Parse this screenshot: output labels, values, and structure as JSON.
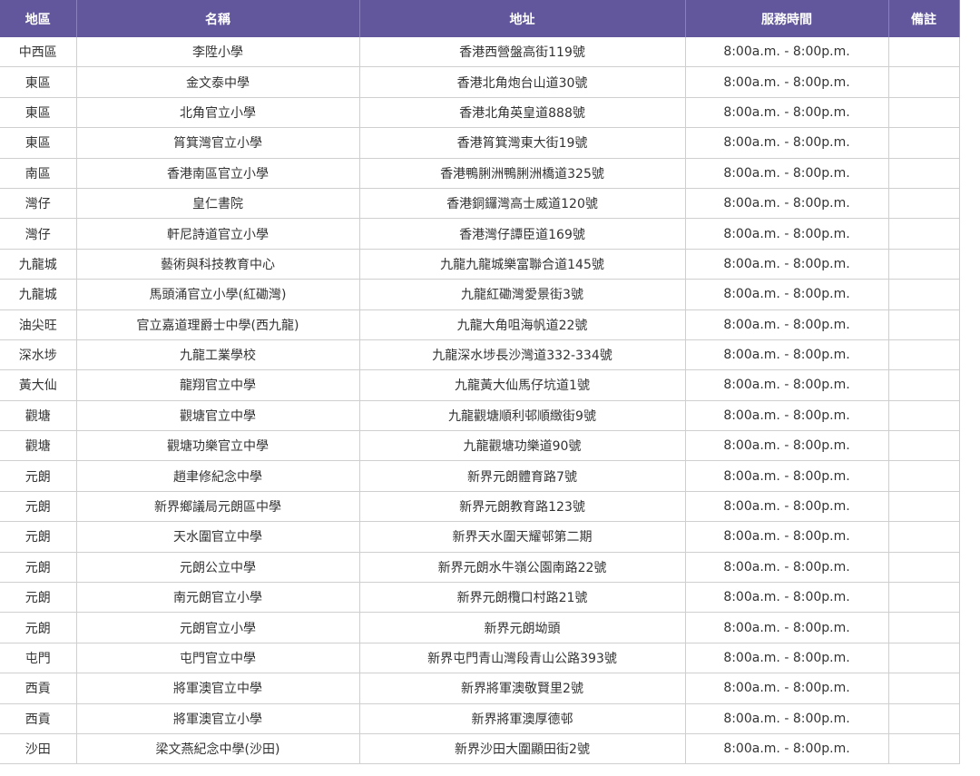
{
  "header": [
    "地區",
    "名稱",
    "地址",
    "服務時間",
    "備註"
  ],
  "colors": {
    "header_bg": "#62569c",
    "header_text": "#ffffff",
    "text": "#333333"
  },
  "rows": [
    [
      "中西區",
      "李陞小學",
      "香港西營盤高街119號",
      "8:00a.m. - 8:00p.m.",
      ""
    ],
    [
      "東區",
      "金文泰中學",
      "香港北角炮台山道30號",
      "8:00a.m. - 8:00p.m.",
      ""
    ],
    [
      "東區",
      "北角官立小學",
      "香港北角英皇道888號",
      "8:00a.m. - 8:00p.m.",
      ""
    ],
    [
      "東區",
      "筲箕灣官立小學",
      "香港筲箕灣東大街19號",
      "8:00a.m. - 8:00p.m.",
      ""
    ],
    [
      "南區",
      "香港南區官立小學",
      "香港鴨脷洲鴨脷洲橋道325號",
      "8:00a.m. - 8:00p.m.",
      ""
    ],
    [
      "灣仔",
      "皇仁書院",
      "香港銅鑼灣高士威道120號",
      "8:00a.m. - 8:00p.m.",
      ""
    ],
    [
      "灣仔",
      "軒尼詩道官立小學",
      "香港灣仔譚臣道169號",
      "8:00a.m. - 8:00p.m.",
      ""
    ],
    [
      "九龍城",
      "藝術與科技教育中心",
      "九龍九龍城樂富聯合道145號",
      "8:00a.m. - 8:00p.m.",
      ""
    ],
    [
      "九龍城",
      "馬頭涌官立小學(紅磡灣)",
      "九龍紅磡灣愛景街3號",
      "8:00a.m. - 8:00p.m.",
      ""
    ],
    [
      "油尖旺",
      "官立嘉道理爵士中學(西九龍)",
      "九龍大角咀海帆道22號",
      "8:00a.m. - 8:00p.m.",
      ""
    ],
    [
      "深水埗",
      "九龍工業學校",
      "九龍深水埗長沙灣道332-334號",
      "8:00a.m. - 8:00p.m.",
      ""
    ],
    [
      "黃大仙",
      "龍翔官立中學",
      "九龍黃大仙馬仔坑道1號",
      "8:00a.m. - 8:00p.m.",
      ""
    ],
    [
      "觀塘",
      "觀塘官立中學",
      "九龍觀塘順利邨順緻街9號",
      "8:00a.m. - 8:00p.m.",
      ""
    ],
    [
      "觀塘",
      "觀塘功樂官立中學",
      "九龍觀塘功樂道90號",
      "8:00a.m. - 8:00p.m.",
      ""
    ],
    [
      "元朗",
      "趙聿修紀念中學",
      "新界元朗體育路7號",
      "8:00a.m. - 8:00p.m.",
      ""
    ],
    [
      "元朗",
      "新界鄉議局元朗區中學",
      "新界元朗教育路123號",
      "8:00a.m. - 8:00p.m.",
      ""
    ],
    [
      "元朗",
      "天水圍官立中學",
      "新界天水圍天耀邨第二期",
      "8:00a.m. - 8:00p.m.",
      ""
    ],
    [
      "元朗",
      "元朗公立中學",
      "新界元朗水牛嶺公園南路22號",
      "8:00a.m. - 8:00p.m.",
      ""
    ],
    [
      "元朗",
      "南元朗官立小學",
      "新界元朗欖口村路21號",
      "8:00a.m. - 8:00p.m.",
      ""
    ],
    [
      "元朗",
      "元朗官立小學",
      "新界元朗坳頭",
      "8:00a.m. - 8:00p.m.",
      ""
    ],
    [
      "屯門",
      "屯門官立中學",
      "新界屯門青山灣段青山公路393號",
      "8:00a.m. - 8:00p.m.",
      ""
    ],
    [
      "西貢",
      "將軍澳官立中學",
      "新界將軍澳敬賢里2號",
      "8:00a.m. - 8:00p.m.",
      ""
    ],
    [
      "西貢",
      "將軍澳官立小學",
      "新界將軍澳厚德邨",
      "8:00a.m. - 8:00p.m.",
      ""
    ],
    [
      "沙田",
      "梁文燕紀念中學(沙田)",
      "新界沙田大圍顯田街2號",
      "8:00a.m. - 8:00p.m.",
      ""
    ]
  ]
}
